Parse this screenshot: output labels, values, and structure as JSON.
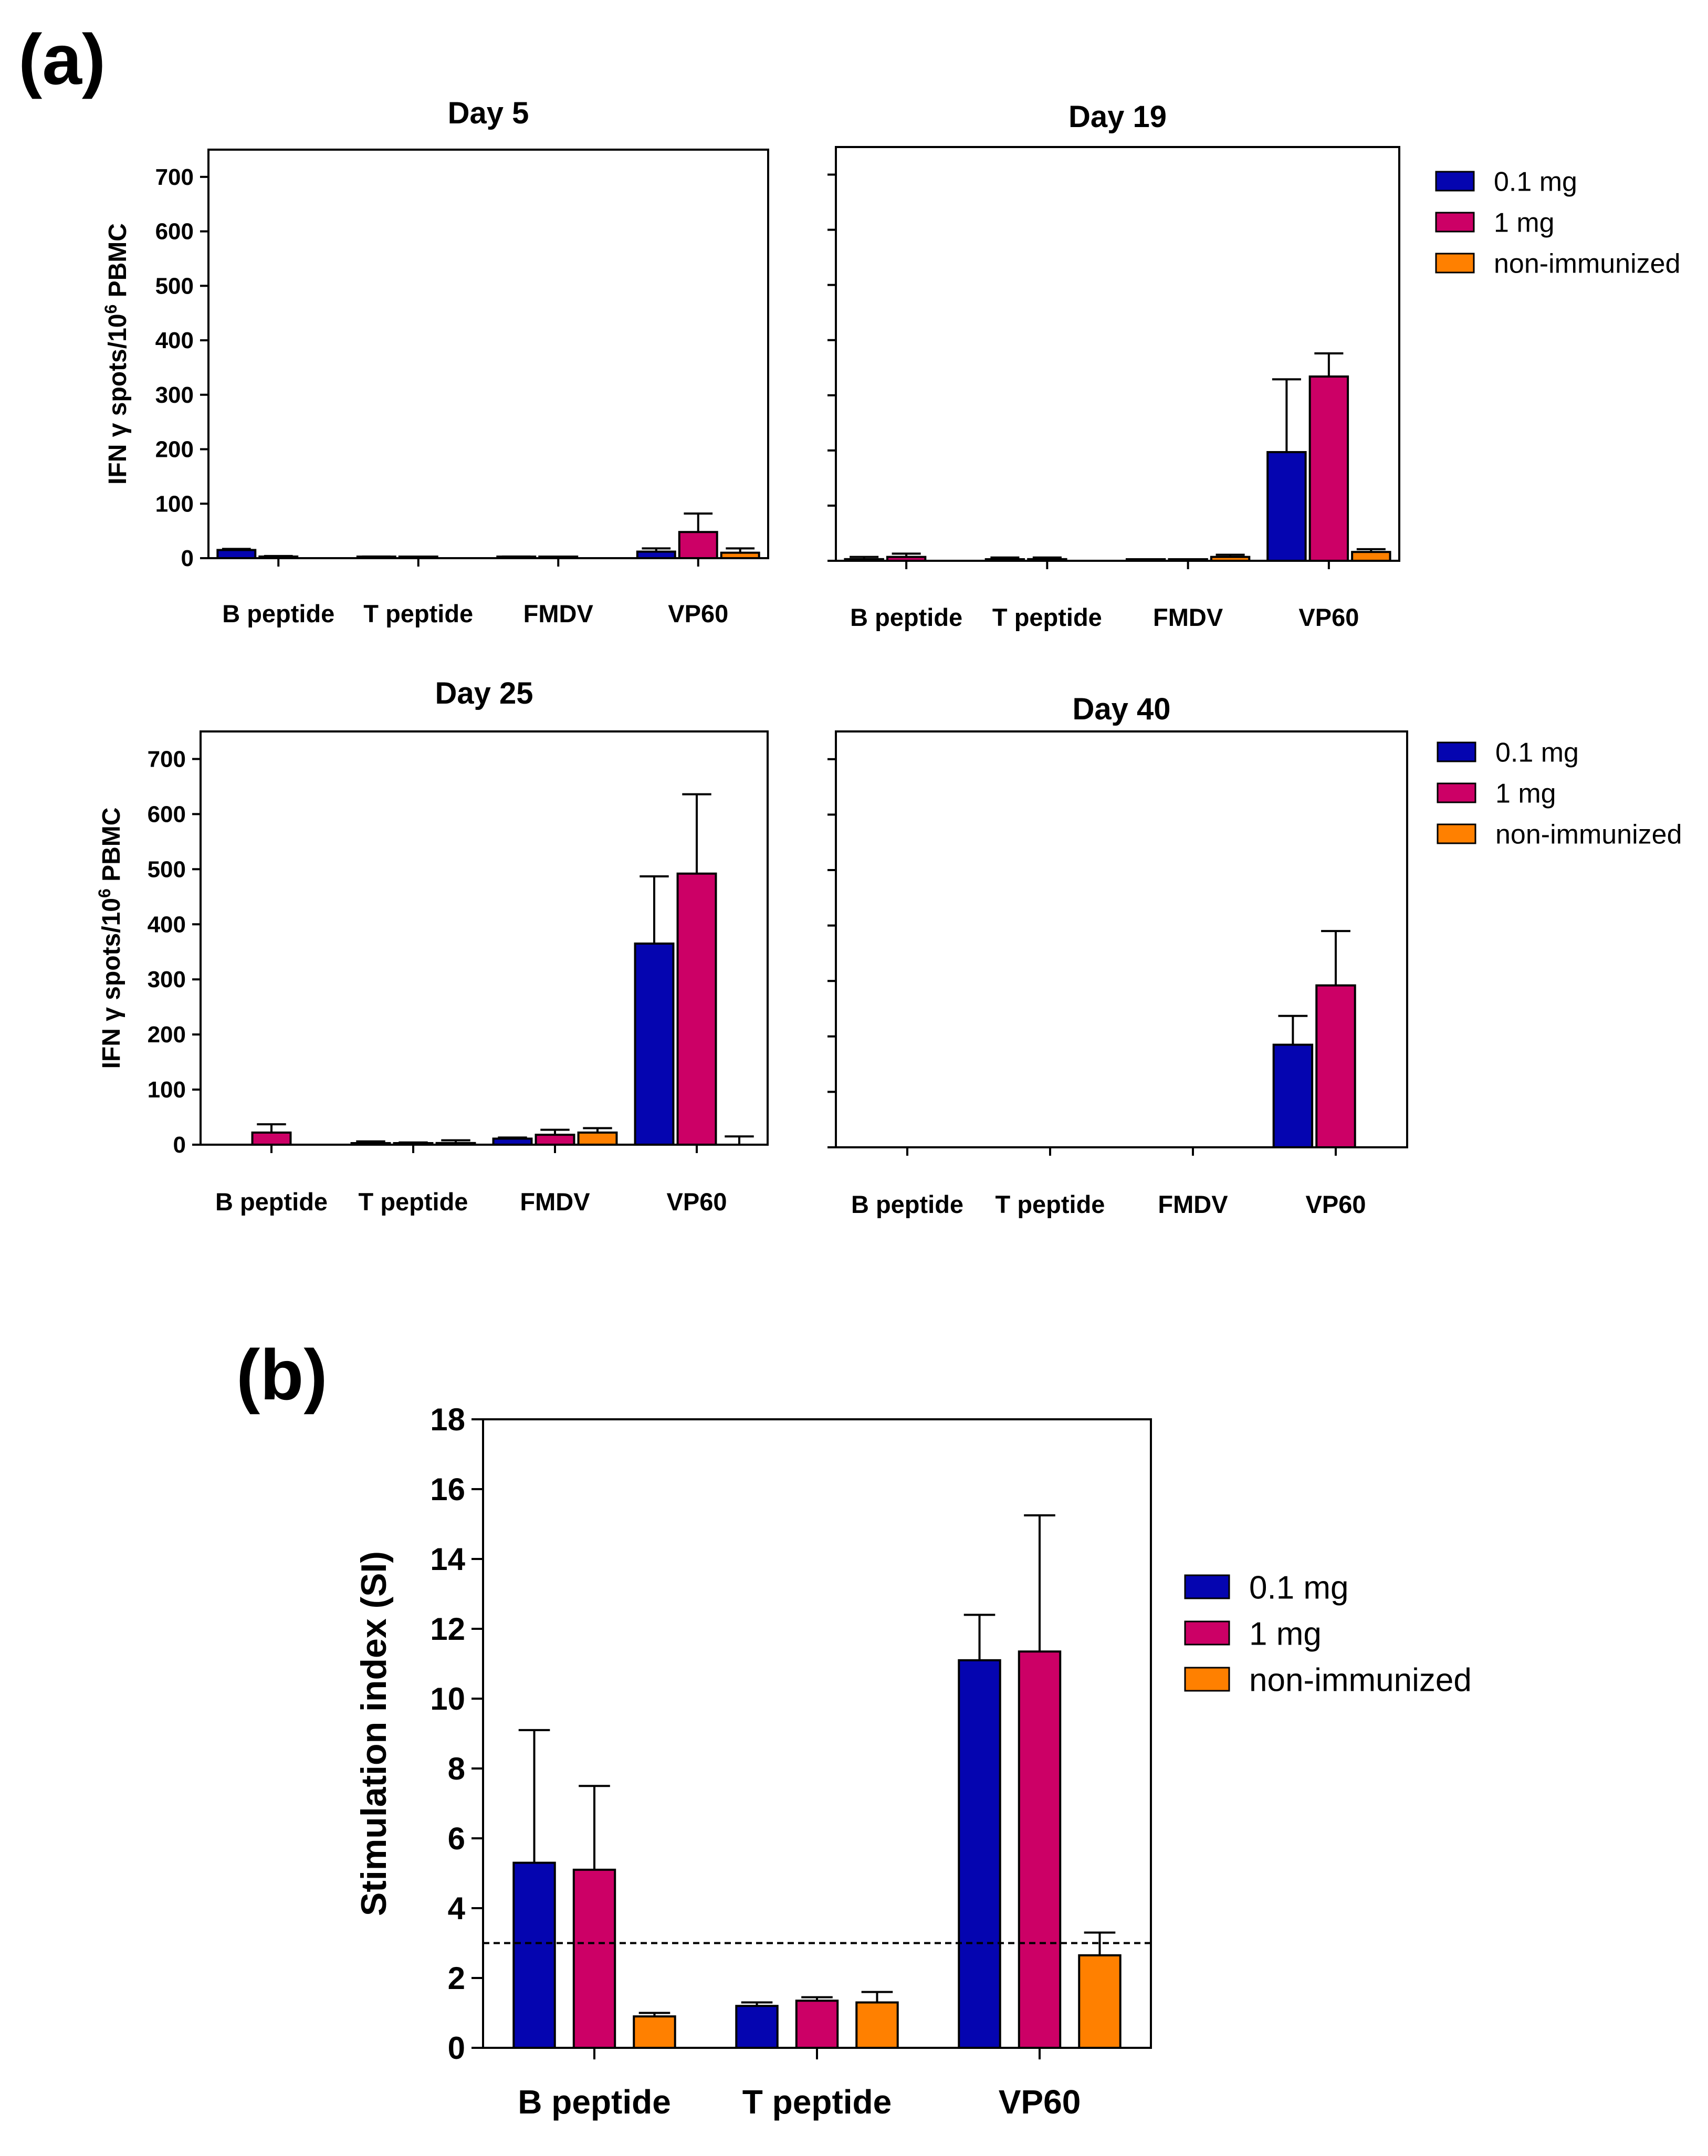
{
  "panel_labels": {
    "a": "(a)",
    "b": "(b)"
  },
  "colors": {
    "dose_0_1": "#0505b0",
    "dose_1": "#cc0066",
    "non_immunized": "#ff8000"
  },
  "chart_data": [
    {
      "id": "day5",
      "type": "bar",
      "title": "Day 5",
      "ylabel_main": "IFN γ spots/10",
      "ylabel_sup": "6",
      "ylabel_tail": " PBMC",
      "ylim": [
        0,
        750
      ],
      "yticks": [
        0,
        100,
        200,
        300,
        400,
        500,
        600,
        700
      ],
      "categories": [
        "B peptide",
        "T peptide",
        "FMDV",
        "VP60"
      ],
      "series": [
        {
          "name": "0.1 mg",
          "values": [
            15,
            2,
            2,
            12
          ],
          "errors": [
            2,
            1,
            1,
            6
          ]
        },
        {
          "name": "1 mg",
          "values": [
            3,
            1,
            1,
            48
          ],
          "errors": [
            1,
            1,
            1,
            34
          ]
        },
        {
          "name": "non-immunized",
          "values": [
            0,
            0,
            0,
            10
          ],
          "errors": [
            0,
            0,
            0,
            8
          ]
        }
      ]
    },
    {
      "id": "day19",
      "type": "bar",
      "title": "Day 19",
      "ylim": [
        0,
        750
      ],
      "yticks": [
        0,
        100,
        200,
        300,
        400,
        500,
        600,
        700
      ],
      "categories": [
        "B peptide",
        "T peptide",
        "FMDV",
        "VP60"
      ],
      "series": [
        {
          "name": "0.1 mg",
          "values": [
            3,
            2,
            1,
            197
          ],
          "errors": [
            4,
            4,
            1,
            132
          ]
        },
        {
          "name": "1 mg",
          "values": [
            7,
            3,
            1,
            334
          ],
          "errors": [
            6,
            3,
            1,
            42
          ]
        },
        {
          "name": "non-immunized",
          "values": [
            0,
            0,
            7,
            16
          ],
          "errors": [
            0,
            0,
            4,
            5
          ]
        }
      ]
    },
    {
      "id": "day25",
      "type": "bar",
      "title": "Day 25",
      "ylabel_main": "IFN γ spots/10",
      "ylabel_sup": "6",
      "ylabel_tail": " PBMC",
      "ylim": [
        0,
        750
      ],
      "yticks": [
        0,
        100,
        200,
        300,
        400,
        500,
        600,
        700
      ],
      "categories": [
        "B peptide",
        "T peptide",
        "FMDV",
        "VP60"
      ],
      "series": [
        {
          "name": "0.1 mg",
          "values": [
            0,
            1,
            11,
            365
          ],
          "errors": [
            0,
            5,
            2,
            122
          ]
        },
        {
          "name": "1 mg",
          "values": [
            22,
            2,
            18,
            492
          ],
          "errors": [
            15,
            2,
            9,
            144
          ]
        },
        {
          "name": "non-immunized",
          "values": [
            0,
            3,
            22,
            0
          ],
          "errors": [
            0,
            5,
            8,
            15
          ]
        }
      ]
    },
    {
      "id": "day40",
      "type": "bar",
      "title": "Day 40",
      "ylim": [
        0,
        750
      ],
      "yticks": [
        0,
        100,
        200,
        300,
        400,
        500,
        600,
        700
      ],
      "categories": [
        "B peptide",
        "T peptide",
        "FMDV",
        "VP60"
      ],
      "series": [
        {
          "name": "0.1 mg",
          "values": [
            0,
            0,
            0,
            185
          ],
          "errors": [
            0,
            0,
            0,
            52
          ]
        },
        {
          "name": "1 mg",
          "values": [
            0,
            0,
            0,
            292
          ],
          "errors": [
            0,
            0,
            0,
            98
          ]
        },
        {
          "name": "non-immunized",
          "values": [
            0,
            0,
            0,
            0
          ],
          "errors": [
            0,
            0,
            0,
            0
          ]
        }
      ]
    },
    {
      "id": "stimulation",
      "type": "bar",
      "title": "",
      "ylabel": "Stimulation index (SI)",
      "ylim": [
        0,
        18
      ],
      "yticks": [
        0,
        2,
        4,
        6,
        8,
        10,
        12,
        14,
        16,
        18
      ],
      "threshold": 3,
      "categories": [
        "B peptide",
        "T peptide",
        "VP60"
      ],
      "series": [
        {
          "name": "0.1 mg",
          "values": [
            5.3,
            1.2,
            11.1
          ],
          "errors": [
            3.8,
            0.1,
            1.3
          ]
        },
        {
          "name": "1 mg",
          "values": [
            5.1,
            1.35,
            11.35
          ],
          "errors": [
            2.4,
            0.1,
            3.9
          ]
        },
        {
          "name": "non-immunized",
          "values": [
            0.9,
            1.3,
            2.65
          ],
          "errors": [
            0.1,
            0.3,
            0.65
          ]
        }
      ]
    }
  ],
  "legends": [
    {
      "id": "legend-top",
      "items": [
        "0.1 mg",
        "1 mg",
        "non-immunized"
      ]
    },
    {
      "id": "legend-mid",
      "items": [
        "0.1 mg",
        "1 mg",
        "non-immunized"
      ]
    },
    {
      "id": "legend-b",
      "items": [
        "0.1 mg",
        "1 mg",
        "non-immunized"
      ]
    }
  ]
}
